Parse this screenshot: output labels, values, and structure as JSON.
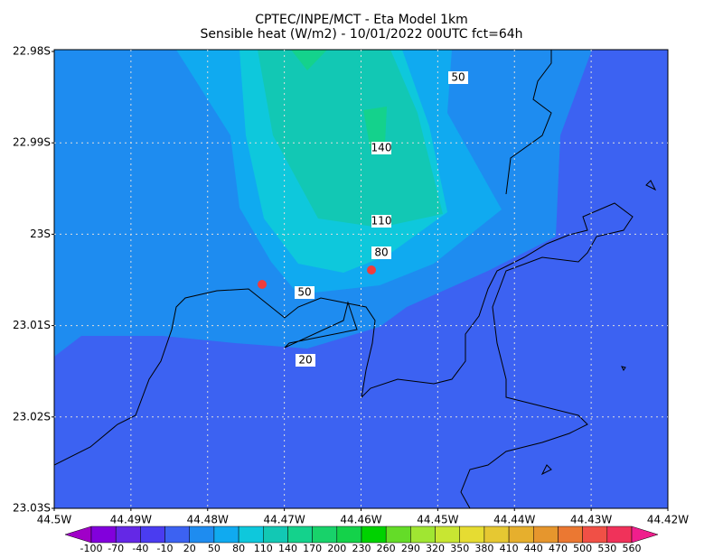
{
  "header": {
    "title": "CPTEC/INPE/MCT -  Eta Model 1km",
    "subtitle": "Sensible heat (W/m2) - 10/01/2022 00UTC fct=64h"
  },
  "axes": {
    "y_ticks": [
      "22.98S",
      "22.99S",
      "23S",
      "23.01S",
      "23.02S",
      "23.03S"
    ],
    "x_ticks": [
      "44.5W",
      "44.49W",
      "44.48W",
      "44.47W",
      "44.46W",
      "44.45W",
      "44.44W",
      "44.43W",
      "44.42W"
    ]
  },
  "contour_labels": [
    "50",
    "140",
    "110",
    "80",
    "50",
    "20"
  ],
  "colorbar": {
    "labels": [
      "-100",
      "-70",
      "-40",
      "-10",
      "20",
      "50",
      "80",
      "110",
      "140",
      "170",
      "200",
      "230",
      "260",
      "290",
      "320",
      "350",
      "380",
      "410",
      "440",
      "470",
      "500",
      "530",
      "560"
    ],
    "colors": [
      "#a000c8",
      "#8200dc",
      "#6428e6",
      "#4a3cf0",
      "#3c62f2",
      "#1e8cf0",
      "#10aaf0",
      "#0ec8dc",
      "#12c8b4",
      "#14d28c",
      "#18d26a",
      "#14d24a",
      "#00d200",
      "#64dc28",
      "#a0e632",
      "#c8e632",
      "#e6dc32",
      "#e6c832",
      "#e6af2d",
      "#e6962d",
      "#eb7832",
      "#f05046",
      "#f0325a",
      "#f01e8c"
    ]
  }
}
